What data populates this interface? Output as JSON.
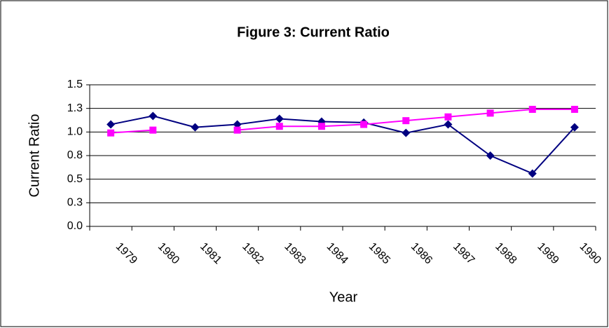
{
  "chart_data": {
    "type": "line",
    "title": "Figure 3: Current Ratio",
    "x_label": "Year",
    "y_label": "Current Ratio",
    "categories": [
      "1979",
      "1980",
      "1981",
      "1982",
      "1983",
      "1984",
      "1985",
      "1986",
      "1987",
      "1988",
      "1989",
      "1990"
    ],
    "series": [
      {
        "color": "#000080",
        "marker": "diamond",
        "values": [
          1.08,
          1.17,
          1.05,
          1.08,
          1.14,
          1.11,
          1.1,
          0.99,
          1.08,
          0.75,
          0.56,
          1.05
        ]
      },
      {
        "color": "#ff00ff",
        "marker": "square",
        "values": [
          0.99,
          1.02,
          null,
          1.02,
          1.06,
          1.06,
          1.08,
          1.12,
          1.16,
          1.2,
          1.24,
          1.24
        ]
      }
    ],
    "ylim": [
      0,
      1.5
    ],
    "yticks": [
      {
        "value": 0,
        "label": "0.0"
      },
      {
        "value": 0.25,
        "label": "0.3"
      },
      {
        "value": 0.5,
        "label": "0.5"
      },
      {
        "value": 0.75,
        "label": "0.8"
      },
      {
        "value": 1,
        "label": "1.0"
      },
      {
        "value": 1.25,
        "label": "1.3"
      },
      {
        "value": 1.5,
        "label": "1.5"
      }
    ],
    "grid": true
  }
}
